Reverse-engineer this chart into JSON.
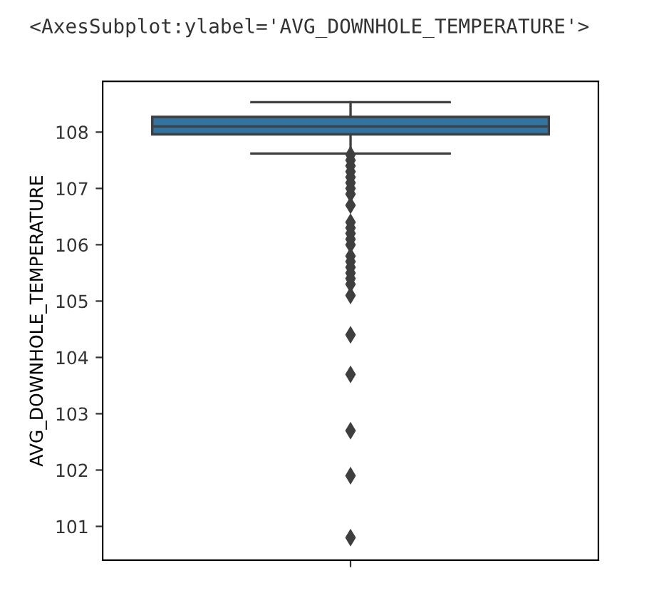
{
  "chart_data": {
    "type": "box",
    "ylabel": "AVG_DOWNHOLE_TEMPERATURE",
    "annotations": [
      "<AxesSubplot:ylabel='AVG_DOWNHOLE_TEMPERATURE'>"
    ],
    "categories": [
      null
    ],
    "color": "#3274a1",
    "boxes": [
      {
        "low": 107.62,
        "q1": 107.96,
        "median": 108.1,
        "q3": 108.27,
        "high": 108.53,
        "outliers": [
          107.6,
          107.5,
          107.4,
          107.3,
          107.2,
          107.1,
          107.0,
          106.9,
          106.7,
          106.4,
          106.3,
          106.2,
          106.1,
          106.0,
          105.8,
          105.7,
          105.6,
          105.5,
          105.4,
          105.3,
          105.1,
          104.4,
          103.7,
          102.7,
          101.9,
          100.8
        ]
      }
    ],
    "ylim": [
      100.4,
      108.9
    ],
    "yticks": [
      101,
      102,
      103,
      104,
      105,
      106,
      107,
      108
    ],
    "grid": false,
    "marker": "diamond"
  }
}
